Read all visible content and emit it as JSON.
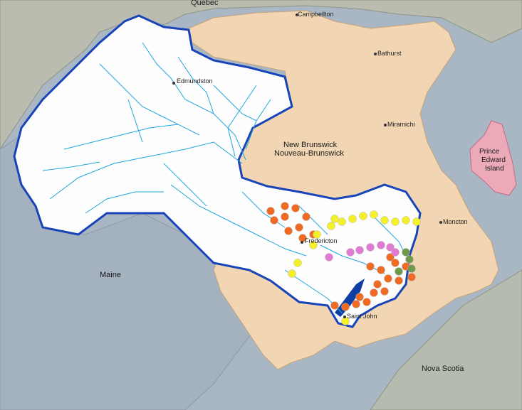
{
  "map": {
    "colors": {
      "water": "#a9b7c4",
      "land_other": "#b9bcae",
      "new_brunswick": "#f2d6b3",
      "watershed": "#fdfdfd",
      "watershed_outline": "#1744b8",
      "rivers": "#1fa6dc",
      "pei": "#ecaab8"
    },
    "labels": {
      "quebec": "Québec",
      "maine": "Maine",
      "nova_scotia": "Nova Scotia",
      "nb_en": "New Brunswick",
      "nb_fr": "Nouveau-Brunswick",
      "pei_line1": "Prince",
      "pei_line2": "Edward",
      "pei_line3": "Island"
    },
    "cities": [
      {
        "name": "Campbellton"
      },
      {
        "name": "Bathurst"
      },
      {
        "name": "Edmundston"
      },
      {
        "name": "Miramichi"
      },
      {
        "name": "Moncton"
      },
      {
        "name": "Fredericton"
      },
      {
        "name": "Saint John"
      }
    ],
    "site_groups": [
      {
        "color": "#f06a24"
      },
      {
        "color": "#f4f02a"
      },
      {
        "color": "#e17ad2"
      },
      {
        "color": "#6e9a4a"
      }
    ]
  }
}
